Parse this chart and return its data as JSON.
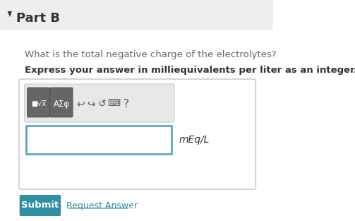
{
  "title": "Part B",
  "question": "What is the total negative charge of the electrolytes?",
  "instruction": "Express your answer in milliequivalents per liter as an integer.",
  "unit": "mEq/L",
  "submit_text": "Submit",
  "request_text": "Request Answer",
  "bg_color": "#f5f5f5",
  "white_bg": "#ffffff",
  "header_bg": "#eeeeee",
  "toolbar_bg": "#e8e8e8",
  "btn_dark": "#666666",
  "btn_teal": "#2e8fa3",
  "input_border": "#4a9fc4",
  "text_gray": "#666666",
  "text_dark": "#333333",
  "submit_bg": "#2e8fa3",
  "link_color": "#2e8fa3",
  "arrow_color": "#555555"
}
